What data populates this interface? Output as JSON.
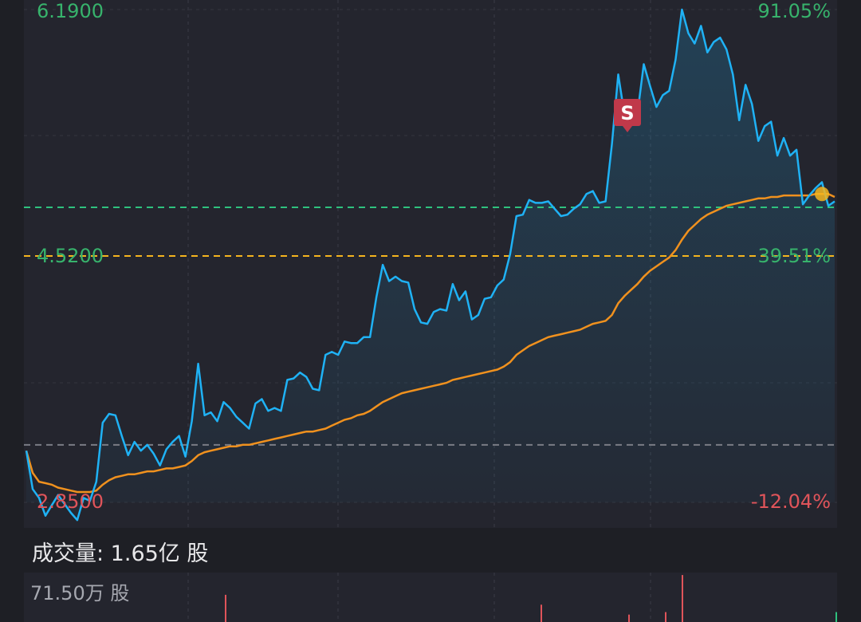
{
  "chart_data": {
    "type": "line",
    "ylim": [
      2.85,
      6.19
    ],
    "grid": true,
    "labels": {
      "max_price": "6.1900",
      "max_pct": "91.05%",
      "mid_price": "4.5200",
      "mid_pct": "39.51%",
      "min_price": "2.8500",
      "min_pct": "-12.04%"
    },
    "reference_lines": {
      "prev_close": 3.24,
      "current": 4.85,
      "avg_level": 4.52
    },
    "colors": {
      "price_line": "#1fb2f5",
      "avg_line": "#f0911e",
      "up_text": "#37b36c",
      "down_text": "#e0545a",
      "current_line": "#2ec27e",
      "avg_dash": "#f5b51e",
      "prev_close_dash": "#7a7c85"
    },
    "price_series": [
      3.2,
      2.94,
      2.88,
      2.76,
      2.83,
      2.9,
      2.84,
      2.78,
      2.73,
      2.88,
      2.86,
      2.99,
      3.39,
      3.45,
      3.44,
      3.3,
      3.17,
      3.26,
      3.2,
      3.24,
      3.18,
      3.1,
      3.21,
      3.26,
      3.3,
      3.16,
      3.4,
      3.79,
      3.44,
      3.46,
      3.4,
      3.53,
      3.49,
      3.43,
      3.39,
      3.35,
      3.52,
      3.55,
      3.47,
      3.49,
      3.47,
      3.68,
      3.69,
      3.73,
      3.7,
      3.62,
      3.61,
      3.85,
      3.87,
      3.85,
      3.94,
      3.93,
      3.93,
      3.97,
      3.97,
      4.24,
      4.46,
      4.35,
      4.38,
      4.35,
      4.34,
      4.16,
      4.07,
      4.06,
      4.14,
      4.16,
      4.15,
      4.33,
      4.22,
      4.28,
      4.09,
      4.12,
      4.23,
      4.24,
      4.32,
      4.36,
      4.53,
      4.79,
      4.8,
      4.9,
      4.88,
      4.88,
      4.89,
      4.84,
      4.79,
      4.8,
      4.84,
      4.87,
      4.94,
      4.96,
      4.88,
      4.89,
      5.28,
      5.75,
      5.47,
      5.57,
      5.48,
      5.82,
      5.67,
      5.53,
      5.61,
      5.64,
      5.85,
      6.19,
      6.03,
      5.96,
      6.08,
      5.9,
      5.97,
      6.0,
      5.92,
      5.75,
      5.44,
      5.68,
      5.55,
      5.3,
      5.4,
      5.43,
      5.2,
      5.32,
      5.2,
      5.24,
      4.87,
      4.93,
      4.98,
      5.02,
      4.86,
      4.89
    ],
    "avg_series": [
      3.2,
      3.05,
      2.99,
      2.98,
      2.97,
      2.95,
      2.94,
      2.93,
      2.92,
      2.92,
      2.92,
      2.93,
      2.97,
      3.0,
      3.02,
      3.03,
      3.04,
      3.04,
      3.05,
      3.06,
      3.06,
      3.07,
      3.08,
      3.08,
      3.09,
      3.1,
      3.13,
      3.17,
      3.19,
      3.2,
      3.21,
      3.22,
      3.23,
      3.23,
      3.24,
      3.24,
      3.25,
      3.26,
      3.27,
      3.28,
      3.29,
      3.3,
      3.31,
      3.32,
      3.33,
      3.33,
      3.34,
      3.35,
      3.37,
      3.39,
      3.41,
      3.42,
      3.44,
      3.45,
      3.47,
      3.5,
      3.53,
      3.55,
      3.57,
      3.59,
      3.6,
      3.61,
      3.62,
      3.63,
      3.64,
      3.65,
      3.66,
      3.68,
      3.69,
      3.7,
      3.71,
      3.72,
      3.73,
      3.74,
      3.75,
      3.77,
      3.8,
      3.85,
      3.88,
      3.91,
      3.93,
      3.95,
      3.97,
      3.98,
      3.99,
      4.0,
      4.01,
      4.02,
      4.04,
      4.06,
      4.07,
      4.08,
      4.12,
      4.2,
      4.25,
      4.29,
      4.33,
      4.38,
      4.42,
      4.45,
      4.48,
      4.51,
      4.56,
      4.63,
      4.69,
      4.73,
      4.77,
      4.8,
      4.82,
      4.84,
      4.86,
      4.87,
      4.88,
      4.89,
      4.9,
      4.91,
      4.91,
      4.92,
      4.92,
      4.93,
      4.93,
      4.93,
      4.93,
      4.93,
      4.94,
      4.94,
      4.94,
      4.92
    ]
  },
  "volume": {
    "title": "成交量:  1.65亿 股",
    "max_label": "71.50万 股",
    "up_color": "#e0545a",
    "down_color": "#2ec27e"
  },
  "sell_marker": {
    "label": "S",
    "bg": "#c0394a"
  }
}
